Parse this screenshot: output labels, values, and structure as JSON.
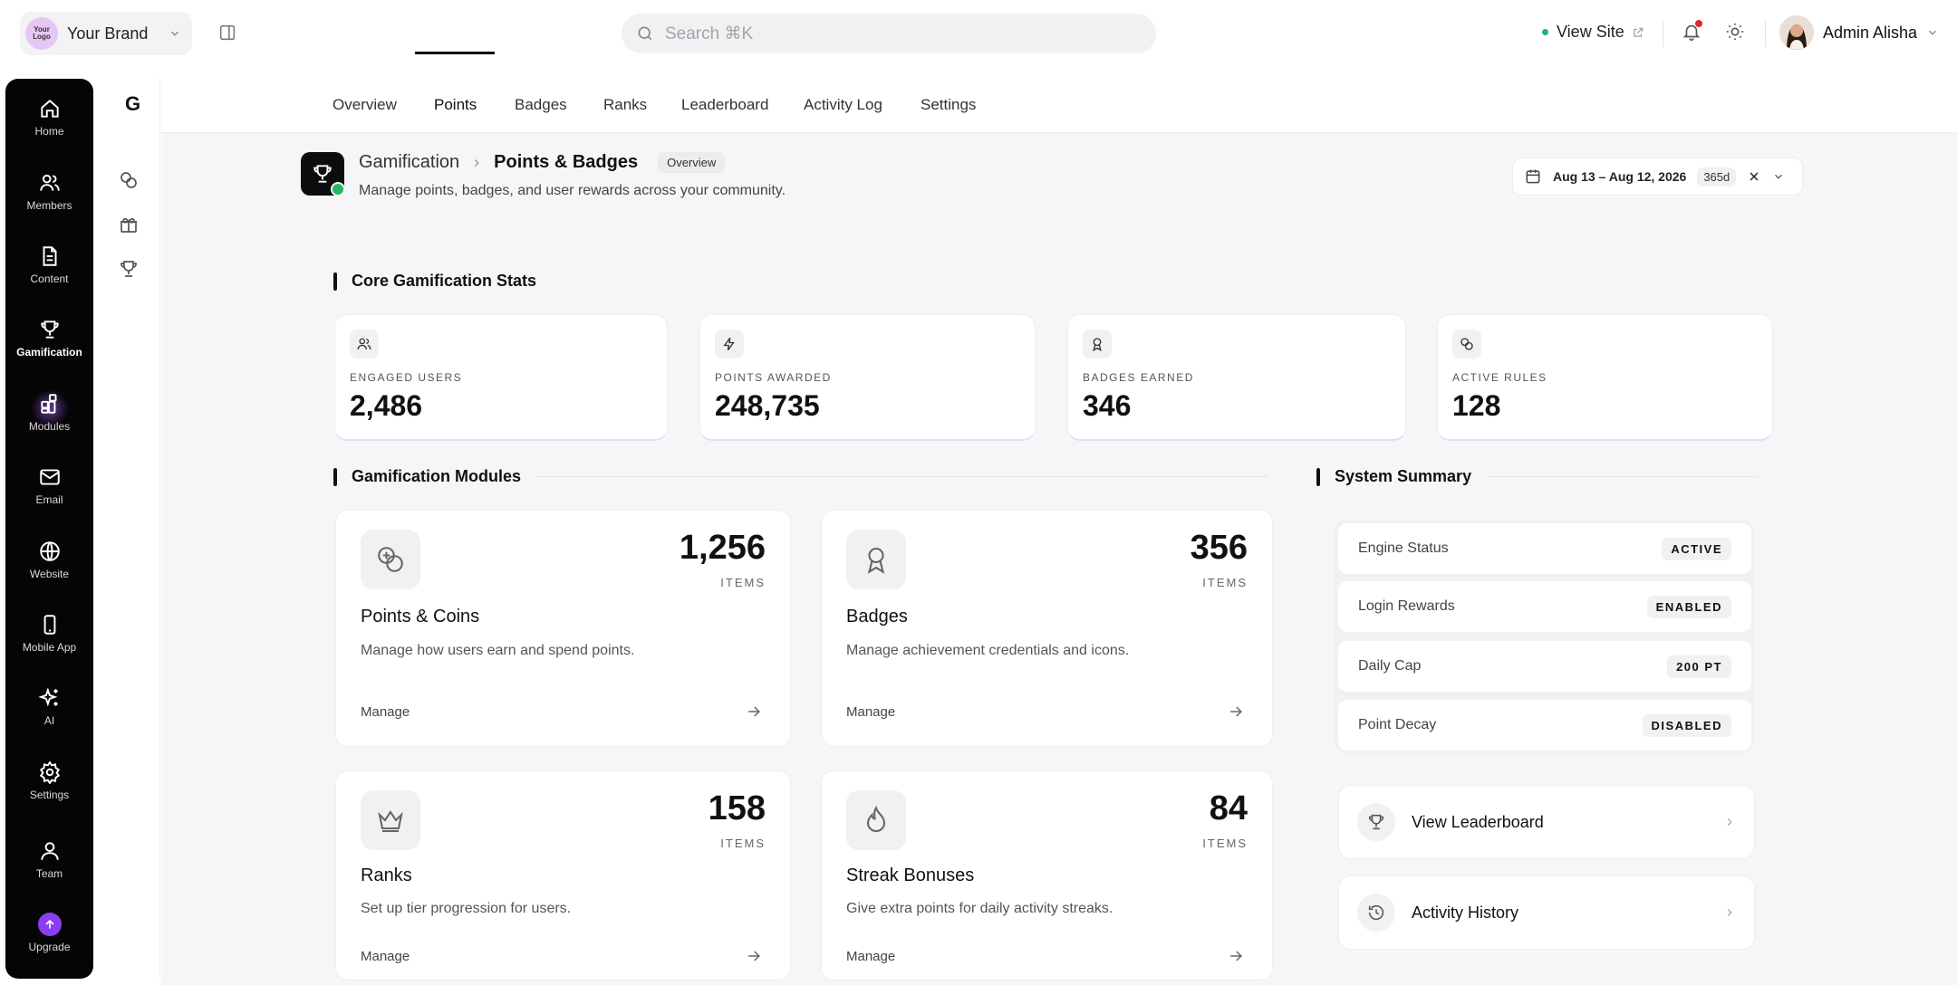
{
  "brand": {
    "logo_text": "Your Logo",
    "logo_line1": "Your",
    "logo_line2": "Logo",
    "name": "Your Brand"
  },
  "search": {
    "placeholder": "Search ⌘K"
  },
  "header": {
    "view_site_label": "View Site",
    "user_name": "Admin Alisha",
    "status_color": "#22b36b",
    "notification_color": "#e3262e"
  },
  "sidebar": {
    "items": [
      {
        "label": "Home",
        "icon": "home-icon"
      },
      {
        "label": "Members",
        "icon": "users-icon"
      },
      {
        "label": "Content",
        "icon": "document-icon"
      },
      {
        "label": "Gamification",
        "icon": "trophy-icon",
        "active": true
      },
      {
        "label": "Modules",
        "icon": "modules-icon"
      },
      {
        "label": "Email",
        "icon": "mail-icon"
      },
      {
        "label": "Website",
        "icon": "globe-icon"
      },
      {
        "label": "Mobile App",
        "icon": "phone-icon"
      },
      {
        "label": "AI",
        "icon": "sparkles-icon"
      },
      {
        "label": "Settings",
        "icon": "gear-icon"
      },
      {
        "label": "Team",
        "icon": "team-icon"
      },
      {
        "label": "Upgrade",
        "icon": "upgrade-icon"
      }
    ],
    "accent_color": "#8b3ef0"
  },
  "rail": {
    "letter": "G",
    "icons": [
      "coins-icon",
      "gift-icon",
      "trophy-icon"
    ]
  },
  "tabs": [
    {
      "label": "Overview"
    },
    {
      "label": "Points",
      "active": true
    },
    {
      "label": "Badges"
    },
    {
      "label": "Ranks"
    },
    {
      "label": "Leaderboard"
    },
    {
      "label": "Activity Log"
    },
    {
      "label": "Settings"
    }
  ],
  "page": {
    "breadcrumb_root": "Gamification",
    "title": "Points & Badges",
    "badge": "Overview",
    "subtitle": "Manage points, badges, and user rewards across your community.",
    "date_range": "Aug 13 – Aug 12, 2026",
    "date_days": "365d"
  },
  "sections": {
    "core_stats": "Core Gamification Stats",
    "modules": "Gamification Modules",
    "system": "System Summary"
  },
  "stats": [
    {
      "label": "ENGAGED USERS",
      "value": "2,486",
      "icon": "users-icon"
    },
    {
      "label": "POINTS AWARDED",
      "value": "248,735",
      "icon": "bolt-icon"
    },
    {
      "label": "BADGES EARNED",
      "value": "346",
      "icon": "award-icon"
    },
    {
      "label": "ACTIVE RULES",
      "value": "128",
      "icon": "link-icon"
    }
  ],
  "modules": [
    {
      "title": "Points & Coins",
      "count": "1,256",
      "unit": "ITEMS",
      "description": "Manage how users earn and spend points.",
      "action": "Manage",
      "icon": "coins-icon"
    },
    {
      "title": "Badges",
      "count": "356",
      "unit": "ITEMS",
      "description": "Manage achievement credentials and icons.",
      "action": "Manage",
      "icon": "award-icon"
    },
    {
      "title": "Ranks",
      "count": "158",
      "unit": "ITEMS",
      "description": "Set up tier progression for users.",
      "action": "Manage",
      "icon": "crown-icon"
    },
    {
      "title": "Streak Bonuses",
      "count": "84",
      "unit": "ITEMS",
      "description": "Give extra points for daily activity streaks.",
      "action": "Manage",
      "icon": "flame-icon"
    }
  ],
  "system_summary": [
    {
      "label": "Engine Status",
      "value": "ACTIVE"
    },
    {
      "label": "Login Rewards",
      "value": "ENABLED"
    },
    {
      "label": "Daily Cap",
      "value": "200 PT"
    },
    {
      "label": "Point Decay",
      "value": "DISABLED"
    }
  ],
  "links": [
    {
      "label": "View Leaderboard",
      "icon": "trophy-icon"
    },
    {
      "label": "Activity History",
      "icon": "history-icon"
    }
  ]
}
